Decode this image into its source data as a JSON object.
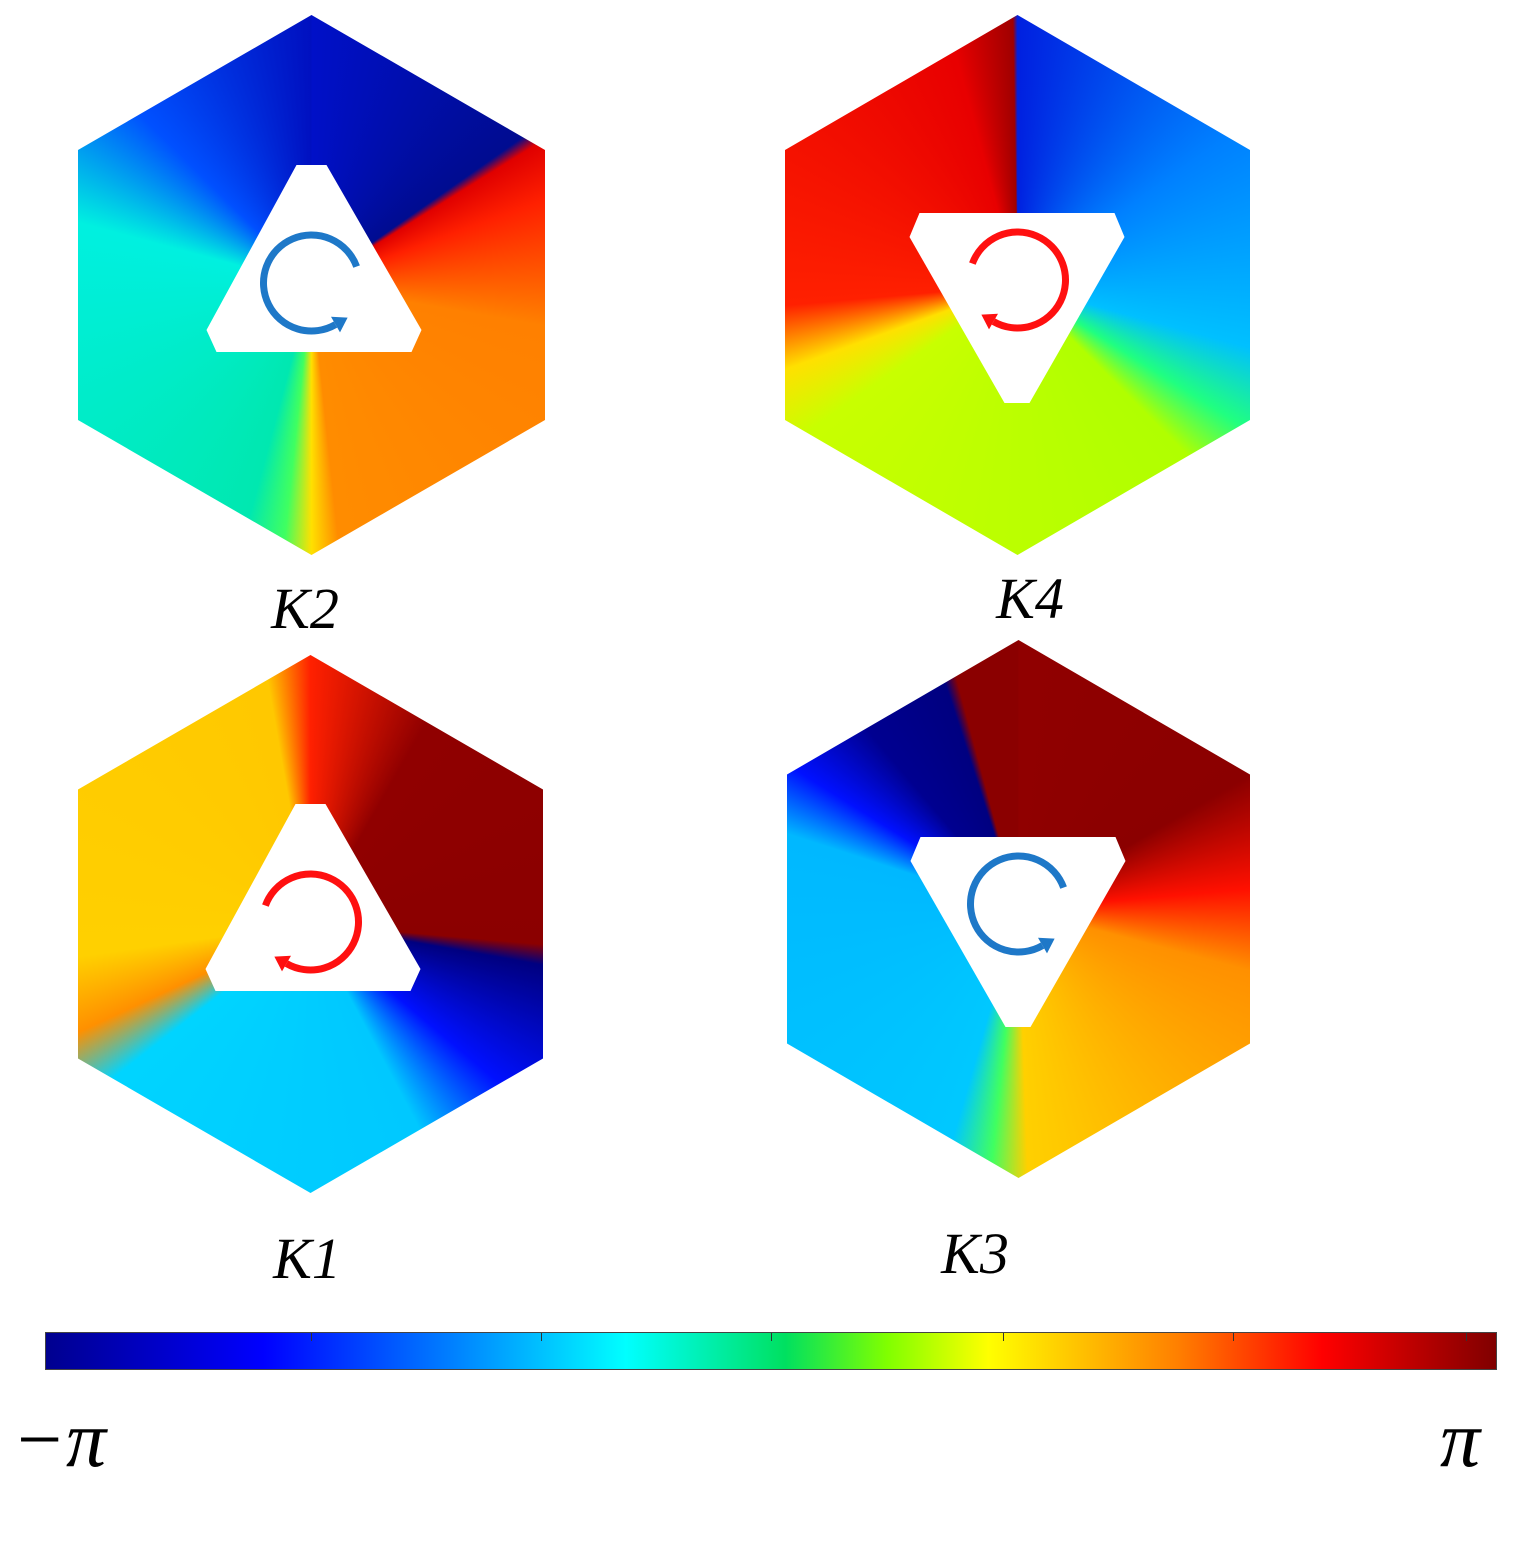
{
  "panels": [
    {
      "label": "K2"
    },
    {
      "label": "K4"
    },
    {
      "label": "K1"
    },
    {
      "label": "K3"
    }
  ],
  "colorbar": {
    "min_label": "−π",
    "max_label": "π"
  }
}
